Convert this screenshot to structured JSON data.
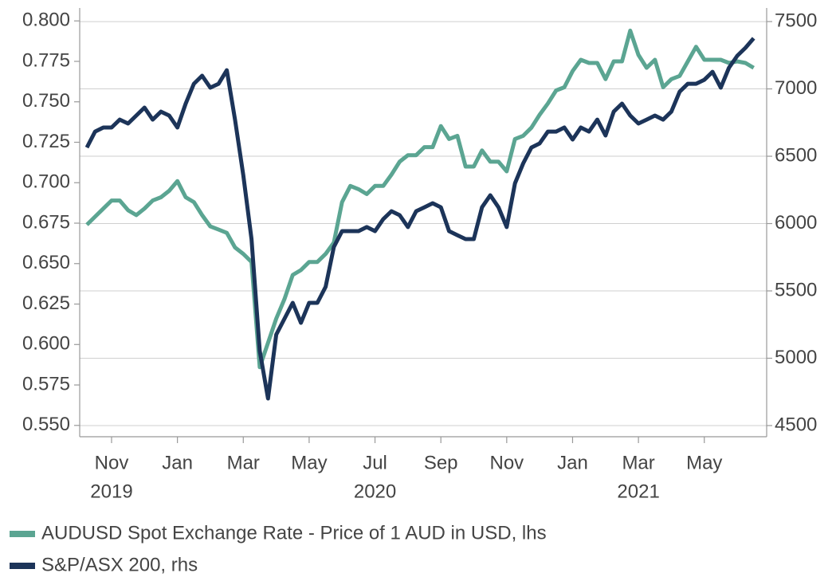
{
  "chart_data": {
    "type": "line",
    "categories": [
      null,
      null,
      null,
      "Nov",
      null,
      null,
      null,
      null,
      null,
      null,
      null,
      "Jan",
      null,
      null,
      null,
      null,
      null,
      null,
      null,
      "Mar",
      null,
      null,
      null,
      null,
      null,
      null,
      null,
      "May",
      null,
      null,
      null,
      null,
      null,
      null,
      null,
      "Jul",
      null,
      null,
      null,
      null,
      null,
      null,
      null,
      "Sep",
      null,
      null,
      null,
      null,
      null,
      null,
      null,
      "Nov",
      null,
      null,
      null,
      null,
      null,
      null,
      null,
      "Jan",
      null,
      null,
      null,
      null,
      null,
      null,
      null,
      "Mar",
      null,
      null,
      null,
      null,
      null,
      null,
      null,
      "May",
      null,
      null,
      null,
      null,
      null,
      null
    ],
    "year_labels": [
      "2019",
      "2020",
      "2021"
    ],
    "series": [
      {
        "name": "AUDUSD Spot Exchange Rate - Price of 1 AUD in USD, lhs",
        "color": "#5ba592",
        "values": [
          0.674,
          0.679,
          0.684,
          0.689,
          0.689,
          0.683,
          0.68,
          0.684,
          0.689,
          0.691,
          0.695,
          0.701,
          0.691,
          0.688,
          0.68,
          0.673,
          0.671,
          0.669,
          0.66,
          0.656,
          0.651,
          0.586,
          0.601,
          0.616,
          0.628,
          0.643,
          0.646,
          0.651,
          0.651,
          0.656,
          0.663,
          0.688,
          0.698,
          0.696,
          0.693,
          0.698,
          0.698,
          0.705,
          0.713,
          0.717,
          0.717,
          0.722,
          0.722,
          0.735,
          0.727,
          0.729,
          0.71,
          0.71,
          0.72,
          0.713,
          0.713,
          0.707,
          0.727,
          0.729,
          0.734,
          0.742,
          0.749,
          0.757,
          0.759,
          0.769,
          0.776,
          0.774,
          0.774,
          0.764,
          0.775,
          0.775,
          0.794,
          0.779,
          0.771,
          0.776,
          0.759,
          0.764,
          0.766,
          0.775,
          0.784,
          0.776,
          0.776,
          0.776,
          0.774,
          0.775,
          0.774,
          0.771
        ]
      },
      {
        "name": "S&P/ASX 200, rhs",
        "color": "#1c3459",
        "axis": "y2",
        "values": [
          6565,
          6683,
          6713,
          6713,
          6772,
          6743,
          6802,
          6861,
          6772,
          6831,
          6802,
          6713,
          6891,
          7038,
          7098,
          7009,
          7038,
          7139,
          6772,
          6358,
          5885,
          5056,
          4701,
          5175,
          5293,
          5411,
          5263,
          5411,
          5411,
          5530,
          5826,
          5944,
          5944,
          5944,
          5974,
          5944,
          6033,
          6092,
          6062,
          5974,
          6092,
          6121,
          6151,
          6121,
          5944,
          5914,
          5885,
          5885,
          6121,
          6210,
          6121,
          5974,
          6299,
          6447,
          6565,
          6595,
          6683,
          6683,
          6713,
          6624,
          6713,
          6683,
          6772,
          6654,
          6831,
          6891,
          6802,
          6743,
          6772,
          6802,
          6772,
          6831,
          6979,
          7038,
          7038,
          7068,
          7127,
          7009,
          7157,
          7246,
          7305,
          7376
        ]
      }
    ],
    "ylim": [
      0.543,
      0.808
    ],
    "yticks": [
      {
        "value": 0.55,
        "label": "0.550"
      },
      {
        "value": 0.575,
        "label": "0.575"
      },
      {
        "value": 0.6,
        "label": "0.600"
      },
      {
        "value": 0.625,
        "label": "0.625"
      },
      {
        "value": 0.65,
        "label": "0.650"
      },
      {
        "value": 0.675,
        "label": "0.675"
      },
      {
        "value": 0.7,
        "label": "0.700"
      },
      {
        "value": 0.725,
        "label": "0.725"
      },
      {
        "value": 0.75,
        "label": "0.750"
      },
      {
        "value": 0.775,
        "label": "0.775"
      },
      {
        "value": 0.8,
        "label": "0.800"
      }
    ],
    "y2lim": [
      4417,
      7601
    ],
    "y2ticks": [
      4500,
      5000,
      5500,
      6000,
      6500,
      7000,
      7500
    ],
    "grid": true,
    "legend": "bottom"
  }
}
